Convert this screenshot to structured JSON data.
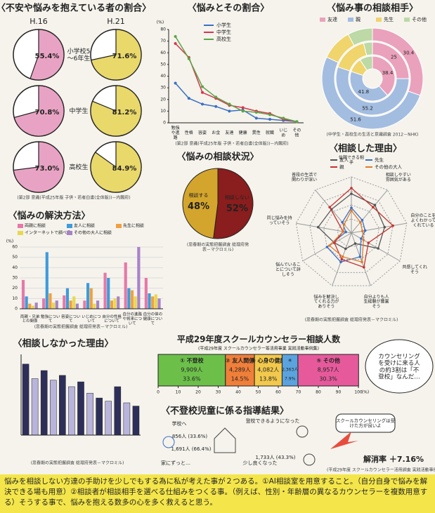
{
  "sections": {
    "anxiety": {
      "title": "〈不安や悩みを抱えている者の割合〉",
      "years": [
        "H.16",
        "H.21"
      ],
      "colors": [
        "#e8a3c4",
        "#e9d86a"
      ],
      "groups": [
        {
          "label": "小学校5～6年生",
          "values": [
            55.4,
            71.6
          ],
          "value_labels": [
            "55.4%",
            "71.6%"
          ]
        },
        {
          "label": "中学生",
          "values": [
            70.8,
            81.2
          ],
          "value_labels": [
            "70.8%",
            "81.2%"
          ]
        },
        {
          "label": "高校生",
          "values": [
            73.0,
            84.9
          ],
          "value_labels": [
            "73.0%",
            "84.9%"
          ]
        }
      ],
      "source": "(第2部 意識(平成25年版 子供・若者白書(全体版))－内閣府)"
    },
    "worries": {
      "title": "〈悩みとその割合〉",
      "y_unit": "(%)",
      "ylim": [
        0,
        80
      ],
      "yticks": [
        0,
        10,
        20,
        30,
        40,
        50,
        60,
        70,
        80
      ],
      "categories": [
        "勉強や進路",
        "性格",
        "容姿",
        "お金",
        "友達",
        "健康",
        "異性",
        "就職",
        "いじめ",
        "その他"
      ],
      "series": [
        {
          "name": "小学生",
          "color": "#3a6fc4",
          "values": [
            34,
            21,
            16,
            14,
            10,
            11,
            4,
            3,
            2,
            1
          ]
        },
        {
          "name": "中学生",
          "color": "#d9344e",
          "values": [
            68,
            56,
            26,
            21,
            15,
            13,
            10,
            8,
            3,
            1
          ]
        },
        {
          "name": "高校生",
          "color": "#5aa448",
          "values": [
            74,
            55,
            31,
            22,
            16,
            10,
            9,
            7,
            4,
            1
          ]
        }
      ],
      "source": "(第2部 意識(平成25年版 子供・若者白書(全体版))－内閣府)"
    },
    "partners": {
      "title": "〈悩み事の相談相手〉",
      "legend": [
        {
          "name": "友達",
          "color": "#eaa1bb"
        },
        {
          "name": "親",
          "color": "#a3bde0"
        },
        {
          "name": "先生",
          "color": "#f0d46c"
        },
        {
          "name": "その他",
          "color": "#bcd9a6"
        }
      ],
      "rings": [
        [
          38.4,
          41.8,
          10.5,
          9.3
        ],
        [
          25.0,
          55.2,
          15.9,
          3.9
        ],
        [
          30.4,
          51.6,
          10.0,
          8.0
        ]
      ],
      "source": "(中学生・高校生の生活と意識調査 2012－NHK)"
    },
    "status": {
      "title": "〈悩みの相談状況〉",
      "categories": [
        "相談しない",
        "相談する"
      ],
      "values": [
        52,
        48
      ],
      "value_labels": [
        "52%",
        "48%"
      ],
      "colors": [
        "#8a1d1d",
        "#d4a52c"
      ],
      "source": "(思春期の実態把握調査 総理府発表－マクロミル)"
    },
    "solutions": {
      "title": "〈悩みの解決方法〉",
      "y_unit": "(%)",
      "ylim": [
        0,
        60
      ],
      "yticks": [
        0,
        10,
        20,
        30,
        40,
        50,
        60
      ],
      "categories": [
        "両親・兄弟との関係",
        "勉強について",
        "容姿について",
        "いじめについて",
        "自分の性格について",
        "自分の進路や将来について",
        "自分の体の健康について"
      ],
      "series": [
        {
          "name": "両親に相談",
          "color": "#e778a8",
          "values": [
            28,
            10,
            13,
            8,
            35,
            45,
            30
          ]
        },
        {
          "name": "友人に相談",
          "color": "#3e9bdc",
          "values": [
            12,
            55,
            20,
            25,
            30,
            20,
            15
          ]
        },
        {
          "name": "先生に相談",
          "color": "#f0a040",
          "values": [
            5,
            15,
            8,
            20,
            8,
            18,
            12
          ]
        },
        {
          "name": "インターネットで調べる",
          "color": "#e8d850",
          "values": [
            3,
            6,
            12,
            5,
            10,
            12,
            14
          ]
        },
        {
          "name": "その他の大人に相談",
          "color": "#a782c8",
          "values": [
            6,
            8,
            5,
            8,
            12,
            60,
            10
          ]
        }
      ],
      "source": "(思春期の実態把握調査 総理府発表－マクロミル)"
    },
    "reasons": {
      "title": "〈相談した理由〉",
      "rlim": [
        0,
        100
      ],
      "axes": [
        "信頼できる相手",
        "相談しやすい雰囲気がある",
        "自分のことをよくわかってくれている",
        "共感してくれそう",
        "自分よりも人生経験が豊富そう",
        "悩みを解決してくれる力がありそう",
        "悩んでいることについて詳しそう",
        "同じ悩みを持っていそう",
        "普段の生活で関わりが深い"
      ],
      "series": [
        {
          "name": "友人",
          "color": "#555555",
          "values": [
            70,
            65,
            60,
            55,
            20,
            30,
            35,
            60,
            55
          ]
        },
        {
          "name": "先生",
          "color": "#3a6fc4",
          "values": [
            45,
            30,
            25,
            20,
            45,
            55,
            50,
            10,
            25
          ]
        },
        {
          "name": "親",
          "color": "#c8302f",
          "values": [
            80,
            60,
            75,
            35,
            65,
            50,
            35,
            15,
            60
          ]
        },
        {
          "name": "その他の大人",
          "color": "#e07a2a",
          "values": [
            40,
            25,
            20,
            25,
            55,
            45,
            45,
            15,
            20
          ]
        }
      ],
      "source": "(思春期の実態把握調査 総理府発表－マクロミル)"
    },
    "no_consult": {
      "title": "〈相談しなかった理由〉",
      "ylim": [
        0,
        50
      ],
      "colors": [
        "#2d2f5a",
        "#b9b4dc"
      ],
      "values": [
        44,
        35,
        40,
        34,
        37,
        30,
        33,
        26,
        23,
        21,
        30,
        20,
        18
      ],
      "source": "(思春期の実態把握調査 総理府発表－マクロミル)"
    },
    "counselor": {
      "title": "平成29年度スクールカウンセラー相談人数",
      "subtitle": "(平成29年度 スクールカウンセラー等活用事業 実践活動事例集)",
      "xlim": [
        0,
        100
      ],
      "xticks": [
        0,
        10,
        20,
        30,
        40,
        50,
        60,
        70,
        80,
        90,
        100
      ],
      "x_unit": "(%)",
      "segments": [
        {
          "name": "① 不登校",
          "color": "#6cc04a",
          "value": 33.6,
          "value_label": "33.6%",
          "count": 9909,
          "count_label": "9,909人"
        },
        {
          "name": "② 友人関係",
          "color": "#f07f3a",
          "value": 14.5,
          "value_label": "14.5%",
          "count": 4289,
          "count_label": "4,289人"
        },
        {
          "name": "③ 心身の健康",
          "color": "#f2c94c",
          "value": 13.8,
          "value_label": "13.8%",
          "count": 4082,
          "count_label": "4,082人"
        },
        {
          "name": "④",
          "color": "#5aa3de",
          "value": 7.9,
          "value_label": "7.9%",
          "count": 2363,
          "count_label": "2,363人"
        },
        {
          "name": "⑤ その他",
          "color": "#e65a9c",
          "value": 30.3,
          "value_label": "30.3%",
          "count": 8957,
          "count_label": "8,957人"
        }
      ],
      "bubble": "カウンセリングを受けに来る人の約3割は「不登校」なんだ…"
    },
    "guidance": {
      "title": "〈不登校児童に係る指導結果〉",
      "labels": [
        "学校へ",
        "856人 (33.6%)",
        "1,691人 (66.4%)",
        "家にずっと…",
        "登校できるようになった",
        "少し良くなった",
        "1,733人 (43.3%)"
      ],
      "note": "スクールカウンセリングは受けた方が良いよ",
      "rate": "解消率 ＋7.16%",
      "source": "(平成29年度 スクールカウンセラー活用調査 実践活動事例集)"
    },
    "conclusion": "悩みを相談しない方達の手助けを少しでもする為に私が考えた事が２つある。①AI相談室を用意すること。（自分自身で悩みを解決できる場も用意）②相談者が相談相手を選べる仕組みをつくる事。（例えば、性別・年齢層の異なるカウンセラーを複数用意する）そうする事で、悩みを抱える数多の心を多く救えると思う。"
  }
}
